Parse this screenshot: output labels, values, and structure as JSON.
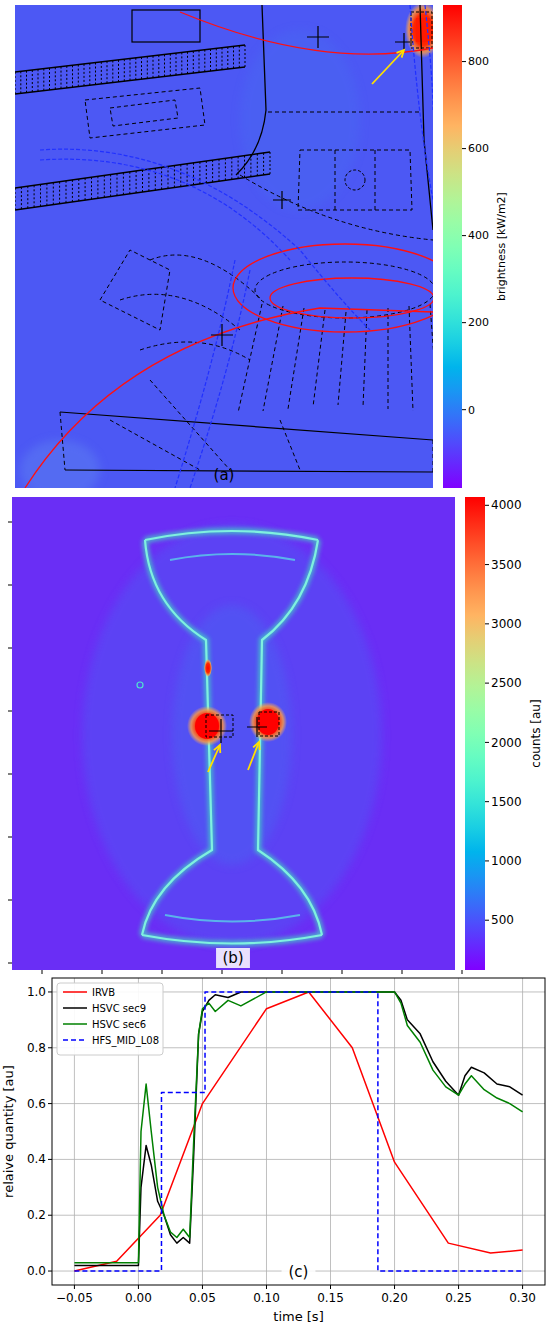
{
  "chart_data": [
    {
      "type": "image",
      "panel_label": "(a)",
      "colorbar": {
        "label": "brightness [kW/m2]",
        "range": [
          -180,
          930
        ],
        "ticks": [
          0,
          200,
          400,
          600,
          800
        ]
      }
    },
    {
      "type": "image",
      "panel_label": "(b)",
      "colorbar": {
        "label": "counts [au]",
        "range": [
          80,
          4070
        ],
        "ticks": [
          500,
          1000,
          1500,
          2000,
          2500,
          3000,
          3500,
          4000
        ]
      }
    },
    {
      "type": "line",
      "panel_label": "(c)",
      "x_label": "time [s]",
      "y_label": "relaive quantity [au]",
      "xlim": [
        -0.0675,
        0.3175
      ],
      "ylim": [
        -0.05,
        1.05
      ],
      "xticks": [
        {
          "value": -0.05,
          "label": "−0.05"
        },
        {
          "value": 0,
          "label": "0.00"
        },
        {
          "value": 0.05,
          "label": "0.05"
        },
        {
          "value": 0.1,
          "label": "0.10"
        },
        {
          "value": 0.15,
          "label": "0.15"
        },
        {
          "value": 0.2,
          "label": "0.20"
        },
        {
          "value": 0.25,
          "label": "0.25"
        },
        {
          "value": 0.3,
          "label": "0.30"
        }
      ],
      "yticks": [
        {
          "value": 0,
          "label": "0.0"
        },
        {
          "value": 0.2,
          "label": "0.2"
        },
        {
          "value": 0.4,
          "label": "0.4"
        },
        {
          "value": 0.6,
          "label": "0.6"
        },
        {
          "value": 0.8,
          "label": "0.8"
        },
        {
          "value": 1,
          "label": "1.0"
        }
      ],
      "grid": true,
      "legend": "upper left",
      "series": [
        {
          "name": "IRVB",
          "color": "#ff0000",
          "line_style": "solid",
          "x": [
            -0.05,
            -0.017,
            0.017,
            0.05,
            0.1,
            0.133,
            0.167,
            0.2,
            0.242,
            0.275,
            0.3
          ],
          "values": [
            0.0,
            0.035,
            0.2,
            0.6,
            0.94,
            1.0,
            0.8,
            0.39,
            0.1,
            0.065,
            0.075
          ]
        },
        {
          "name": "HSVC sec9",
          "color": "#000000",
          "line_style": "solid",
          "x": [
            -0.05,
            0.0,
            0.002,
            0.006,
            0.01,
            0.015,
            0.02,
            0.025,
            0.03,
            0.035,
            0.04,
            0.043,
            0.047,
            0.05,
            0.055,
            0.06,
            0.07,
            0.08,
            0.1,
            0.15,
            0.2,
            0.205,
            0.21,
            0.22,
            0.23,
            0.24,
            0.25,
            0.255,
            0.26,
            0.27,
            0.28,
            0.29,
            0.3
          ],
          "values": [
            0.02,
            0.02,
            0.3,
            0.45,
            0.38,
            0.25,
            0.2,
            0.13,
            0.1,
            0.12,
            0.1,
            0.4,
            0.85,
            0.93,
            0.97,
            0.99,
            0.98,
            1.0,
            1.0,
            1.0,
            1.0,
            0.97,
            0.9,
            0.85,
            0.75,
            0.68,
            0.63,
            0.7,
            0.73,
            0.71,
            0.67,
            0.66,
            0.63
          ]
        },
        {
          "name": "HSVC sec6",
          "color": "#008000",
          "line_style": "solid",
          "x": [
            -0.05,
            0.0,
            0.002,
            0.006,
            0.01,
            0.015,
            0.02,
            0.025,
            0.03,
            0.035,
            0.04,
            0.043,
            0.047,
            0.05,
            0.055,
            0.06,
            0.07,
            0.08,
            0.1,
            0.15,
            0.2,
            0.205,
            0.21,
            0.22,
            0.23,
            0.24,
            0.25,
            0.255,
            0.26,
            0.27,
            0.28,
            0.29,
            0.3
          ],
          "values": [
            0.03,
            0.03,
            0.5,
            0.67,
            0.5,
            0.3,
            0.2,
            0.14,
            0.12,
            0.15,
            0.12,
            0.45,
            0.85,
            0.94,
            0.96,
            0.93,
            0.97,
            0.95,
            1.0,
            1.0,
            1.0,
            0.96,
            0.88,
            0.82,
            0.72,
            0.66,
            0.63,
            0.67,
            0.7,
            0.65,
            0.62,
            0.6,
            0.57
          ]
        },
        {
          "name": "HFS_MID_L08",
          "color": "#0000ff",
          "line_style": "dashed",
          "x": [
            -0.05,
            0.018,
            0.018,
            0.052,
            0.052,
            0.187,
            0.187,
            0.3
          ],
          "values": [
            0,
            0,
            0.64,
            0.64,
            1,
            1,
            0,
            0
          ]
        }
      ]
    }
  ]
}
